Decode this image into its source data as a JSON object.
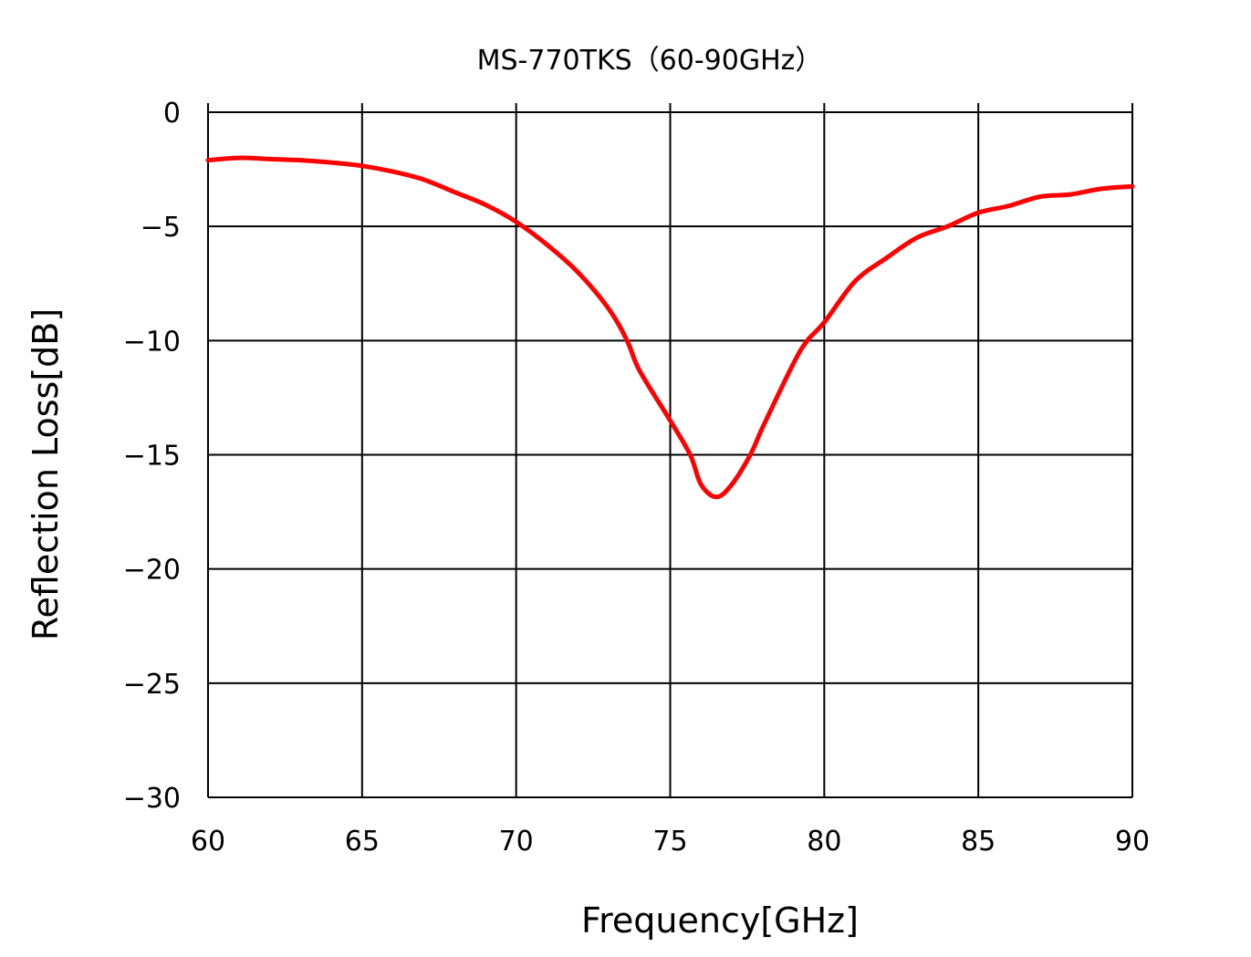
{
  "chart_data": {
    "type": "line",
    "title": "MS-770TKS（60-90GHz）",
    "xlabel": "Frequency[GHz]",
    "ylabel": "Reflection Loss[dB]",
    "xlim": [
      60,
      90
    ],
    "ylim": [
      -30,
      0
    ],
    "xticks": [
      "60",
      "65",
      "70",
      "75",
      "80",
      "85",
      "90"
    ],
    "yticks": [
      "0",
      "−5",
      "−10",
      "−15",
      "−20",
      "−25",
      "−30"
    ],
    "grid": true,
    "line_color": "#ff0000",
    "series": [
      {
        "x": [
          60,
          61,
          62,
          63,
          64,
          65,
          66,
          67,
          68,
          69,
          70,
          71,
          72,
          73,
          73.6,
          74,
          75,
          75.65,
          76,
          76.5,
          77,
          77.6,
          78,
          79,
          79.45,
          80,
          81,
          82,
          83,
          84,
          85,
          86,
          87,
          88,
          89,
          90
        ],
        "y": [
          -2.1,
          -2.0,
          -2.05,
          -2.1,
          -2.2,
          -2.35,
          -2.6,
          -2.95,
          -3.5,
          -4.05,
          -4.8,
          -5.8,
          -7.0,
          -8.6,
          -10.0,
          -11.3,
          -13.5,
          -15.0,
          -16.3,
          -16.85,
          -16.3,
          -15.0,
          -13.8,
          -11.0,
          -10.0,
          -9.2,
          -7.4,
          -6.4,
          -5.5,
          -5.0,
          -4.4,
          -4.1,
          -3.7,
          -3.6,
          -3.35,
          -3.25
        ]
      }
    ]
  }
}
